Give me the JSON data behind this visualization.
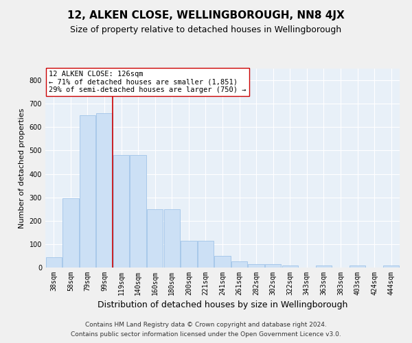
{
  "title": "12, ALKEN CLOSE, WELLINGBOROUGH, NN8 4JX",
  "subtitle": "Size of property relative to detached houses in Wellingborough",
  "xlabel": "Distribution of detached houses by size in Wellingborough",
  "ylabel": "Number of detached properties",
  "categories": [
    "38sqm",
    "58sqm",
    "79sqm",
    "99sqm",
    "119sqm",
    "140sqm",
    "160sqm",
    "180sqm",
    "200sqm",
    "221sqm",
    "241sqm",
    "261sqm",
    "282sqm",
    "302sqm",
    "322sqm",
    "343sqm",
    "363sqm",
    "383sqm",
    "403sqm",
    "424sqm",
    "444sqm"
  ],
  "values": [
    45,
    295,
    650,
    660,
    480,
    480,
    250,
    250,
    113,
    113,
    50,
    25,
    14,
    14,
    8,
    0,
    8,
    0,
    8,
    0,
    8
  ],
  "bar_color": "#cce0f5",
  "bar_edgecolor": "#a0c4e8",
  "vline_color": "#cc0000",
  "vline_pos": 3.5,
  "annotation_box_text": "12 ALKEN CLOSE: 126sqm\n← 71% of detached houses are smaller (1,851)\n29% of semi-detached houses are larger (750) →",
  "ylim": [
    0,
    850
  ],
  "yticks": [
    0,
    100,
    200,
    300,
    400,
    500,
    600,
    700,
    800
  ],
  "background_color": "#e8f0f8",
  "grid_color": "#ffffff",
  "fig_background": "#f0f0f0",
  "footer_line1": "Contains HM Land Registry data © Crown copyright and database right 2024.",
  "footer_line2": "Contains public sector information licensed under the Open Government Licence v3.0.",
  "title_fontsize": 11,
  "subtitle_fontsize": 9,
  "xlabel_fontsize": 9,
  "ylabel_fontsize": 8,
  "tick_fontsize": 7,
  "annotation_fontsize": 7.5,
  "footer_fontsize": 6.5
}
